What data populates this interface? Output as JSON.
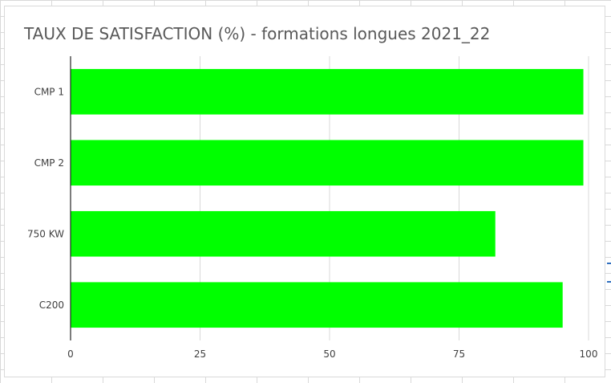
{
  "chart_data": {
    "type": "bar",
    "orientation": "horizontal",
    "title": "TAUX DE SATISFACTION (%) - formations longues 2021_22",
    "xlabel": "",
    "ylabel": "",
    "categories": [
      "CMP 1",
      "CMP 2",
      "750 KW",
      "C200"
    ],
    "values": [
      99,
      99,
      82,
      95
    ],
    "xlim": [
      0,
      100
    ],
    "xticks": [
      0,
      25,
      50,
      75,
      100
    ],
    "bar_color": "#00ff00",
    "grid": true,
    "legend": "none"
  }
}
